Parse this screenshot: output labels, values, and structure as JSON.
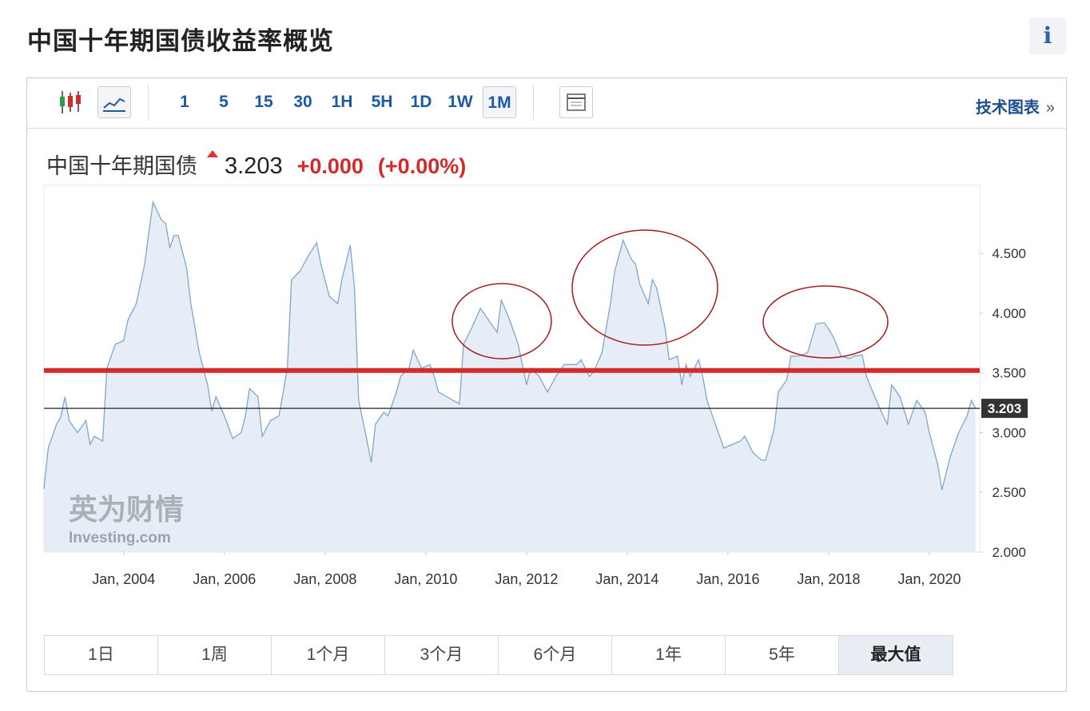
{
  "header": {
    "title": "中国十年期国债收益率概览",
    "info": "i"
  },
  "toolbar": {
    "intervals": [
      "1",
      "5",
      "15",
      "30",
      "1H",
      "5H",
      "1D",
      "1W",
      "1M"
    ],
    "active_interval": "1M",
    "technical_charts": "技术图表",
    "more": "»"
  },
  "quote": {
    "name": "中国十年期国债",
    "change": "+0.000",
    "change_percent": "(+0.00%)"
  },
  "chart_data": {
    "type": "area",
    "x": [
      "2002-06",
      "2002-07",
      "2002-09",
      "2002-10",
      "2002-11",
      "2002-12",
      "2003-02",
      "2003-04",
      "2003-05",
      "2003-06",
      "2003-08",
      "2003-09",
      "2003-11",
      "2004-01",
      "2004-02",
      "2004-04",
      "2004-06",
      "2004-07",
      "2004-08",
      "2004-10",
      "2004-11",
      "2004-12",
      "2005-01",
      "2005-02",
      "2005-04",
      "2005-05",
      "2005-07",
      "2005-09",
      "2005-10",
      "2005-11",
      "2006-01",
      "2006-03",
      "2006-05",
      "2006-06",
      "2006-07",
      "2006-09",
      "2006-10",
      "2006-12",
      "2007-02",
      "2007-04",
      "2007-05",
      "2007-07",
      "2007-09",
      "2007-11",
      "2007-12",
      "2008-02",
      "2008-04",
      "2008-05",
      "2008-07",
      "2008-08",
      "2008-09",
      "2008-11",
      "2008-12",
      "2009-01",
      "2009-03",
      "2009-04",
      "2009-06",
      "2009-07",
      "2009-09",
      "2009-10",
      "2009-12",
      "2010-02",
      "2010-03",
      "2010-04",
      "2010-06",
      "2010-09",
      "2010-10",
      "2010-12",
      "2011-02",
      "2011-04",
      "2011-06",
      "2011-07",
      "2011-09",
      "2011-11",
      "2011-12",
      "2012-01",
      "2012-02",
      "2012-04",
      "2012-06",
      "2012-08",
      "2012-10",
      "2013-01",
      "2013-02",
      "2013-04",
      "2013-05",
      "2013-07",
      "2013-08",
      "2013-09",
      "2013-10",
      "2013-12",
      "2014-02",
      "2014-03",
      "2014-04",
      "2014-06",
      "2014-07",
      "2014-08",
      "2014-10",
      "2014-11",
      "2015-01",
      "2015-02",
      "2015-03",
      "2015-04",
      "2015-06",
      "2015-07",
      "2015-08",
      "2015-10",
      "2015-12",
      "2016-02",
      "2016-04",
      "2016-05",
      "2016-07",
      "2016-09",
      "2016-10",
      "2016-12",
      "2017-01",
      "2017-03",
      "2017-04",
      "2017-06",
      "2017-08",
      "2017-10",
      "2017-12",
      "2018-02",
      "2018-04",
      "2018-06",
      "2018-07",
      "2018-09",
      "2018-10",
      "2018-12",
      "2019-02",
      "2019-03",
      "2019-04",
      "2019-06",
      "2019-08",
      "2019-10",
      "2019-12",
      "2020-01",
      "2020-03",
      "2020-04",
      "2020-06",
      "2020-08",
      "2020-10",
      "2020-11",
      "2020-12"
    ],
    "values": [
      2.53,
      2.87,
      3.07,
      3.13,
      3.3,
      3.1,
      3.0,
      3.1,
      2.9,
      2.97,
      2.93,
      3.54,
      3.74,
      3.77,
      3.94,
      4.08,
      4.41,
      4.68,
      4.93,
      4.78,
      4.75,
      4.55,
      4.65,
      4.65,
      4.38,
      4.08,
      3.67,
      3.4,
      3.18,
      3.3,
      3.14,
      2.95,
      3.0,
      3.14,
      3.37,
      3.3,
      2.97,
      3.1,
      3.14,
      3.54,
      4.28,
      4.35,
      4.48,
      4.59,
      4.41,
      4.14,
      4.08,
      4.28,
      4.57,
      4.21,
      3.27,
      2.93,
      2.75,
      3.07,
      3.17,
      3.14,
      3.34,
      3.47,
      3.54,
      3.69,
      3.54,
      3.57,
      3.47,
      3.34,
      3.3,
      3.24,
      3.74,
      3.88,
      4.04,
      3.94,
      3.84,
      4.11,
      3.94,
      3.74,
      3.57,
      3.4,
      3.54,
      3.47,
      3.34,
      3.47,
      3.57,
      3.57,
      3.61,
      3.47,
      3.51,
      3.67,
      3.88,
      4.08,
      4.35,
      4.61,
      4.45,
      4.41,
      4.24,
      4.08,
      4.28,
      4.21,
      3.88,
      3.61,
      3.64,
      3.4,
      3.57,
      3.47,
      3.61,
      3.47,
      3.27,
      3.07,
      2.87,
      2.9,
      2.93,
      2.97,
      2.83,
      2.77,
      2.77,
      3.03,
      3.34,
      3.44,
      3.64,
      3.64,
      3.67,
      3.91,
      3.92,
      3.81,
      3.64,
      3.62,
      3.64,
      3.65,
      3.47,
      3.3,
      3.14,
      3.07,
      3.4,
      3.3,
      3.07,
      3.27,
      3.17,
      3.0,
      2.73,
      2.52,
      2.8,
      3.0,
      3.14,
      3.27,
      3.203
    ],
    "color": "#7ea6cf",
    "fill_color": "#dde7f3",
    "xlim": [
      "2002-06",
      "2021-01"
    ],
    "xticks": [
      {
        "value": "2004-01",
        "label": "Jan, 2004"
      },
      {
        "value": "2006-01",
        "label": "Jan, 2006"
      },
      {
        "value": "2008-01",
        "label": "Jan, 2008"
      },
      {
        "value": "2010-01",
        "label": "Jan, 2010"
      },
      {
        "value": "2012-01",
        "label": "Jan, 2012"
      },
      {
        "value": "2014-01",
        "label": "Jan, 2014"
      },
      {
        "value": "2016-01",
        "label": "Jan, 2016"
      },
      {
        "value": "2018-01",
        "label": "Jan, 2018"
      },
      {
        "value": "2020-01",
        "label": "Jan, 2020"
      }
    ],
    "ylim": [
      2,
      5.07
    ],
    "yticks": [
      {
        "value": 2,
        "label": "2.000"
      },
      {
        "value": 2.5,
        "label": "2.500"
      },
      {
        "value": 3,
        "label": "3.000"
      },
      {
        "value": 3.5,
        "label": "3.500"
      },
      {
        "value": 4,
        "label": "4.000"
      },
      {
        "value": 4.5,
        "label": "4.500"
      }
    ],
    "grid": false,
    "current_value": 3.203,
    "reference_line": 3.52,
    "reference_color": "#d42a2a",
    "watermark": "英为财情",
    "watermark_sub": "Investing.com"
  },
  "ranges": {
    "items": [
      "1日",
      "1周",
      "1个月",
      "3个月",
      "6个月",
      "1年",
      "5年",
      "最大值"
    ],
    "active": "最大值"
  }
}
